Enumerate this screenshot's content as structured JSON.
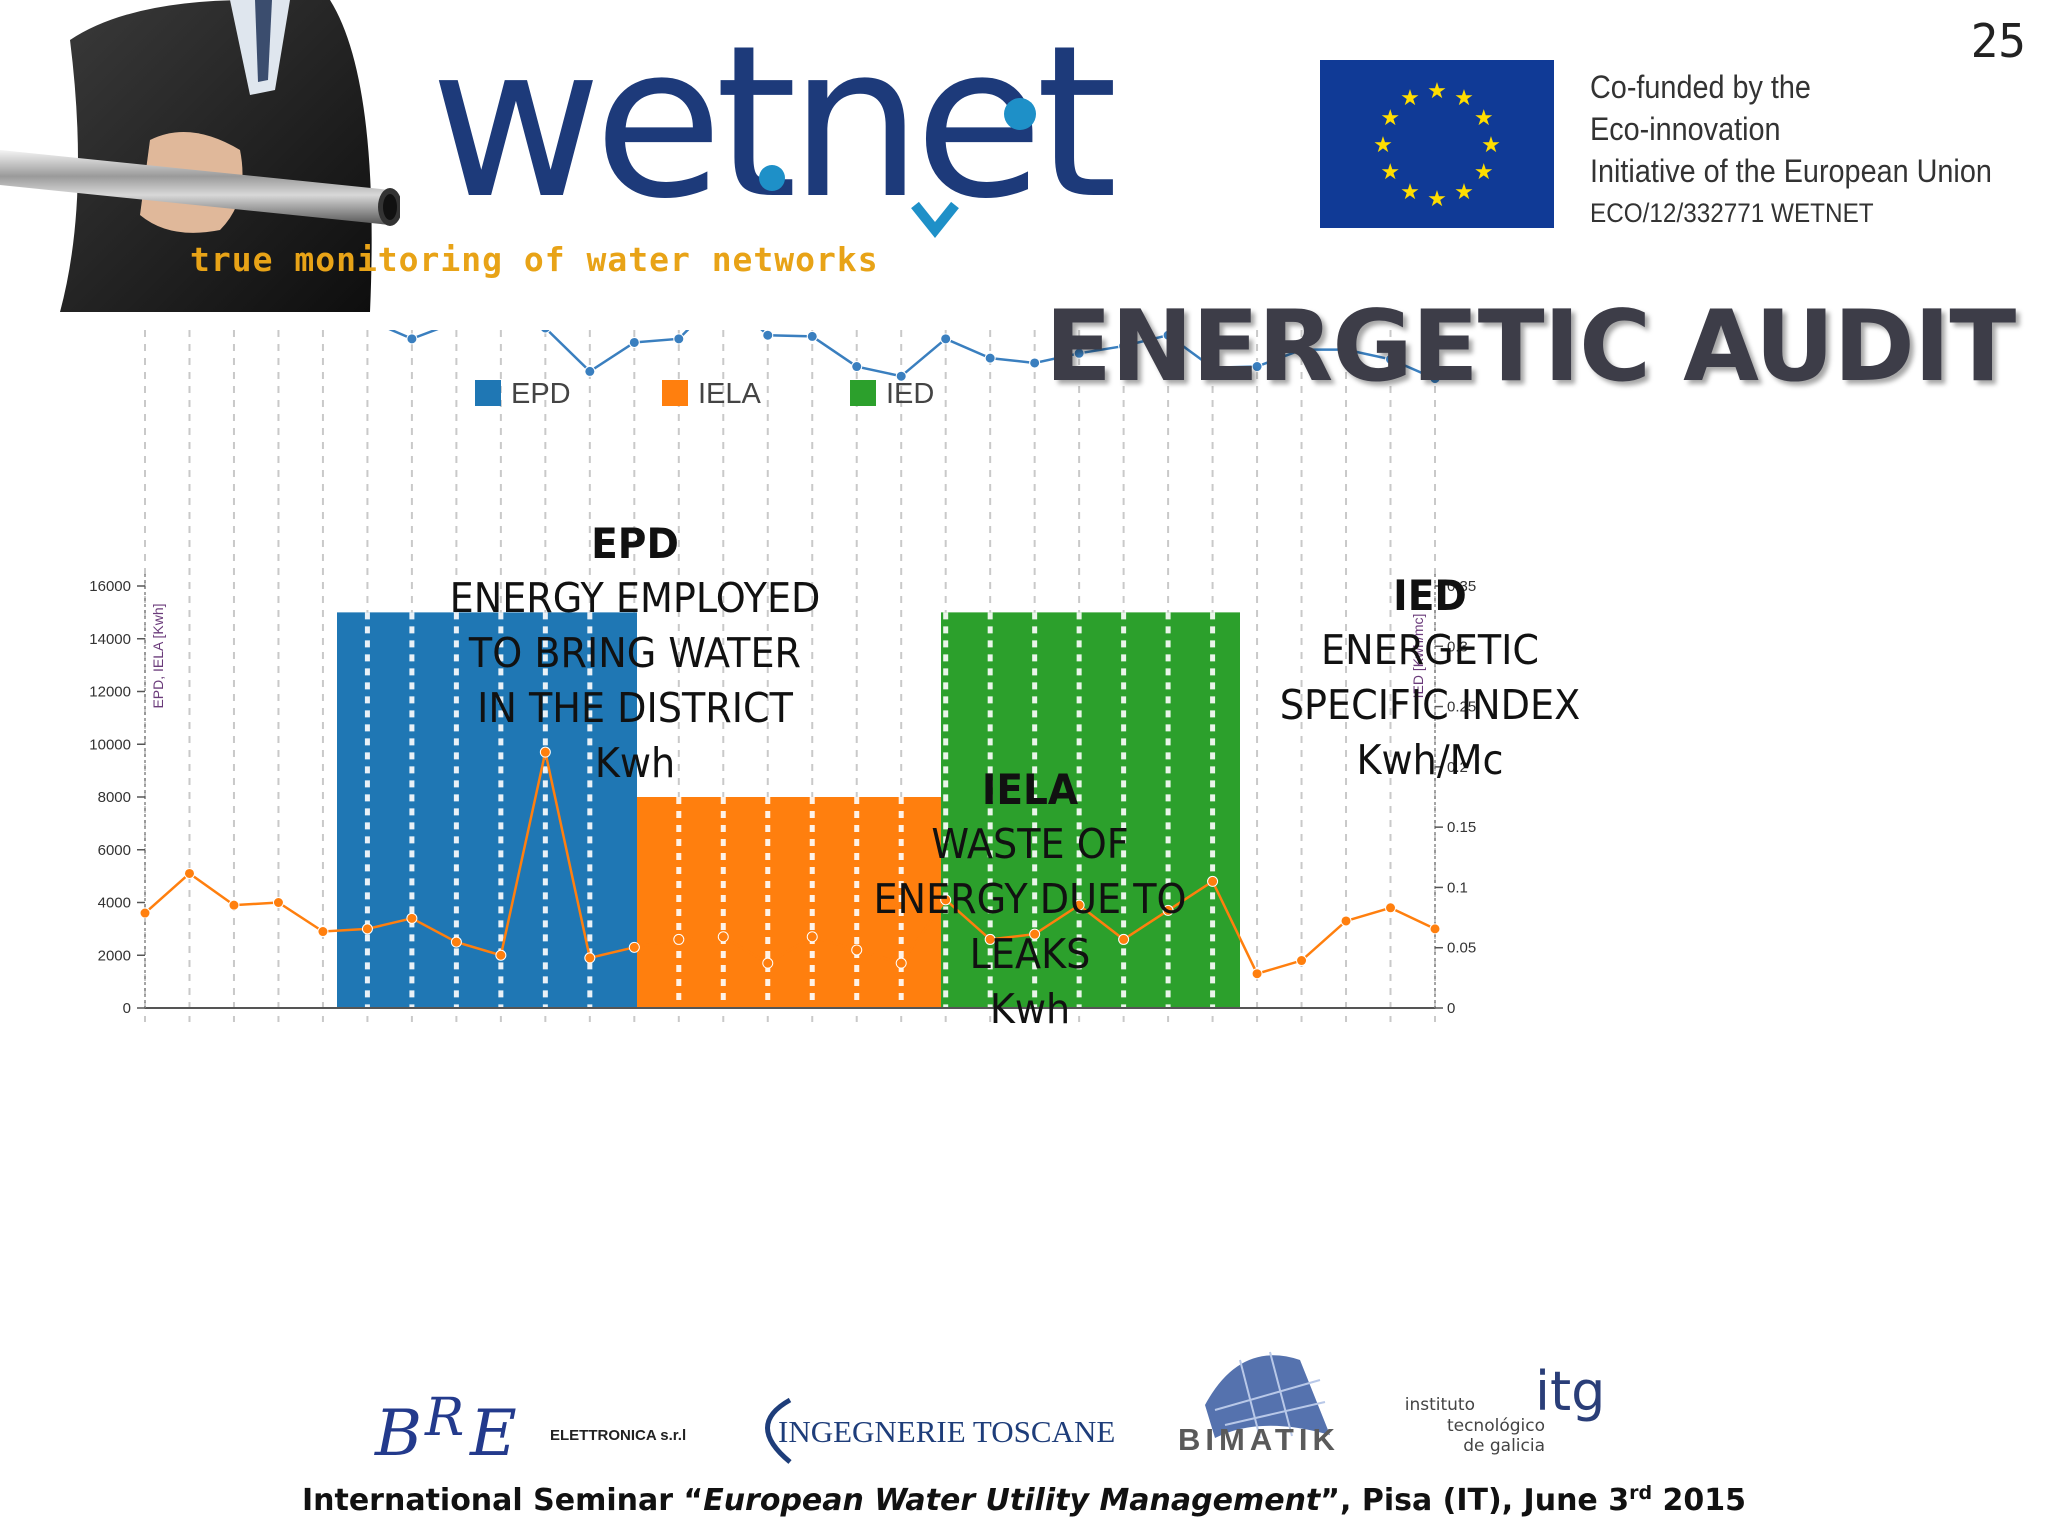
{
  "slide_number": "25",
  "brand": {
    "wordmark": "wetnet",
    "tagline": "true monitoring of water networks"
  },
  "eu_notice": {
    "lines": [
      "Co-funded by the",
      "Eco-innovation",
      "Initiative of the European Union"
    ],
    "code": "ECO/12/332771 WETNET"
  },
  "title": "ENERGETIC AUDIT",
  "legend": [
    {
      "label": "EPD",
      "color": "#1f77b4"
    },
    {
      "label": "IELA",
      "color": "#ff7f0e"
    },
    {
      "label": "IED",
      "color": "#2ca02c"
    }
  ],
  "annotations": {
    "epd": {
      "heading": "EPD",
      "lines": [
        "ENERGY EMPLOYED",
        "TO BRING WATER",
        "IN THE DISTRICT",
        "Kwh"
      ]
    },
    "iela": {
      "heading": "IELA",
      "lines": [
        "WASTE OF",
        "ENERGY DUE TO",
        "LEAKS",
        "Kwh"
      ]
    },
    "ied": {
      "heading": "IED",
      "lines": [
        "ENERGETIC",
        "SPECIFIC INDEX",
        "Kwh/Mc"
      ]
    }
  },
  "chart_data": {
    "type": "bar",
    "left_axis": {
      "label": "EPD, IELA [Kwh]",
      "range": [
        0,
        16000
      ],
      "ticks": [
        0,
        2000,
        4000,
        6000,
        8000,
        10000,
        12000,
        14000,
        16000
      ]
    },
    "right_axis": {
      "label": "IED [Kwh/mc]",
      "range": [
        0,
        0.35
      ],
      "ticks": [
        0,
        0.05,
        0.1,
        0.15,
        0.2,
        0.25,
        0.3,
        0.35
      ]
    },
    "bars": [
      {
        "name": "EPD",
        "value": 15000,
        "color": "#1f77b4"
      },
      {
        "name": "IELA",
        "value": 8000,
        "color": "#ff7f0e"
      },
      {
        "name": "IED",
        "value": 15000,
        "color": "#2ca02c"
      }
    ],
    "point_count": 30,
    "series": [
      {
        "color": "#3a7fbf",
        "values": [
          0.575,
          0.598,
          0.586,
          0.567,
          0.579,
          0.571,
          0.555,
          0.569,
          0.568,
          0.564,
          0.528,
          0.552,
          0.555,
          0.592,
          0.558,
          0.557,
          0.532,
          0.524,
          0.555,
          0.539,
          0.535,
          0.543,
          0.549,
          0.558,
          0.531,
          0.532,
          0.546,
          0.546,
          0.538,
          0.522
        ]
      },
      {
        "color": "#ff7f0e",
        "values": [
          3600,
          5100,
          3900,
          4000,
          2900,
          3000,
          3400,
          2500,
          2000,
          9700,
          1900,
          2300,
          2600,
          2700,
          1700,
          2700,
          2200,
          1700,
          4100,
          2600,
          2800,
          3900,
          2600,
          3700,
          4800,
          1300,
          1800,
          3300,
          3800,
          3000
        ]
      }
    ]
  }
}
